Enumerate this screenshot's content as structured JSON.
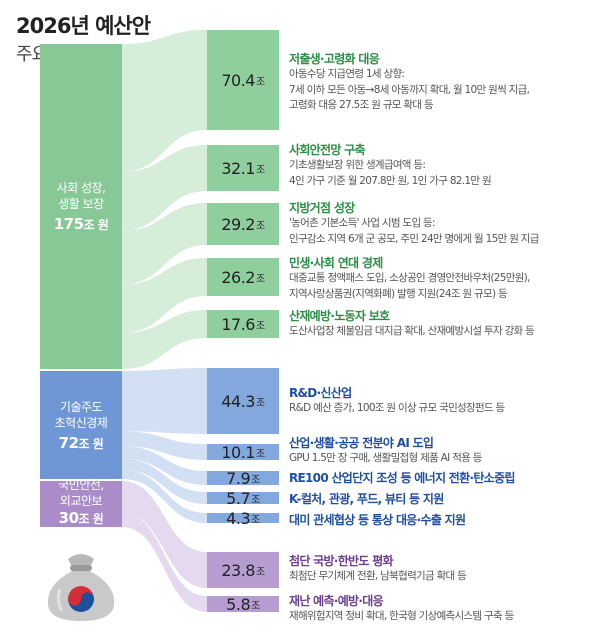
{
  "header": {
    "title": "2026년 예산안",
    "subtitle": "주요 투자 사업"
  },
  "colors": {
    "social": "#87c896",
    "social_box": "#8fcf9d",
    "social_flow": "#d6edd9",
    "tech": "#6f97d6",
    "tech_box": "#83a8de",
    "tech_flow": "#d3e0f4",
    "security": "#a98cc8",
    "security_box": "#b69dd1",
    "security_flow": "#e4d9ee"
  },
  "sources": [
    {
      "id": "social",
      "label_1": "사회 성장,",
      "label_2": "생활 보장",
      "amount": "175",
      "unit": "조 원"
    },
    {
      "id": "tech",
      "label_1": "기술주도",
      "label_2": "초혁신경제",
      "amount": "72",
      "unit": "조 원"
    },
    {
      "id": "security",
      "label_1": "국민안전,",
      "label_2": "외교안보",
      "amount": "30",
      "unit": "조 원"
    }
  ],
  "programs": [
    {
      "group": "social",
      "value": "70.4",
      "unit": "조",
      "title": "저출생·고령화 대응",
      "lines": [
        "아동수당 지급연령 1세 상향:",
        "7세 이하 모든 아동→8세 아동까지 확대, 월 10만 원씩 지급,",
        "고령화 대응 27.5조 원 규모 확대 등"
      ]
    },
    {
      "group": "social",
      "value": "32.1",
      "unit": "조",
      "title": "사회안전망 구축",
      "lines": [
        "기초생활보장 위한 생계급여액 등:",
        "4인 가구 기준 월 207.8만 원, 1인 가구 82.1만 원"
      ]
    },
    {
      "group": "social",
      "value": "29.2",
      "unit": "조",
      "title": "지방거점 성장",
      "lines": [
        "'농어촌 기본소득' 사업 시범 도입 등:",
        "인구감소 지역 6개 군 공모, 주민 24만 명에게 월 15만 원 지급"
      ]
    },
    {
      "group": "social",
      "value": "26.2",
      "unit": "조",
      "title": "민생·사회 연대 경제",
      "lines": [
        "대중교통 정액패스 도입, 소상공인 경영안전바우처(25만원),",
        "지역사랑상품권(지역화폐) 발행 지원(24조 원 규모) 등"
      ]
    },
    {
      "group": "social",
      "value": "17.6",
      "unit": "조",
      "title": "산재예방·노동자 보호",
      "lines": [
        "도산사업장 체불임금 대지급 확대, 산재예방시설 투자 강화 등"
      ]
    },
    {
      "group": "tech",
      "value": "44.3",
      "unit": "조",
      "title": "R&D·신산업",
      "lines": [
        "R&D 예산 증가, 100조 원 이상 규모 국민성장펀드 등"
      ]
    },
    {
      "group": "tech",
      "value": "10.1",
      "unit": "조",
      "title": "산업·생활·공공 전분야 AI 도입",
      "lines": [
        "GPU 1.5만 장 구매, 생활밀접형 제품 AI 적용 등"
      ]
    },
    {
      "group": "tech",
      "value": "7.9",
      "unit": "조",
      "title": "RE100 산업단지 조성 등 에너지 전환·탄소중립",
      "lines": []
    },
    {
      "group": "tech",
      "value": "5.7",
      "unit": "조",
      "title": "K-컬처, 관광, 푸드, 뷰티 등 지원",
      "lines": []
    },
    {
      "group": "tech",
      "value": "4.3",
      "unit": "조",
      "title": "대미 관세협상 등 통상 대응·수출 지원",
      "lines": []
    },
    {
      "group": "security",
      "value": "23.8",
      "unit": "조",
      "title": "첨단 국방·한반도 평화",
      "lines": [
        "최첨단 무기체계 전환, 남북협력기금 확대 등"
      ]
    },
    {
      "group": "security",
      "value": "5.8",
      "unit": "조",
      "title": "재난 예측·예방·대응",
      "lines": [
        "재해위험지역 정비 확대, 한국형 기상예측시스템 구축 등"
      ]
    }
  ]
}
